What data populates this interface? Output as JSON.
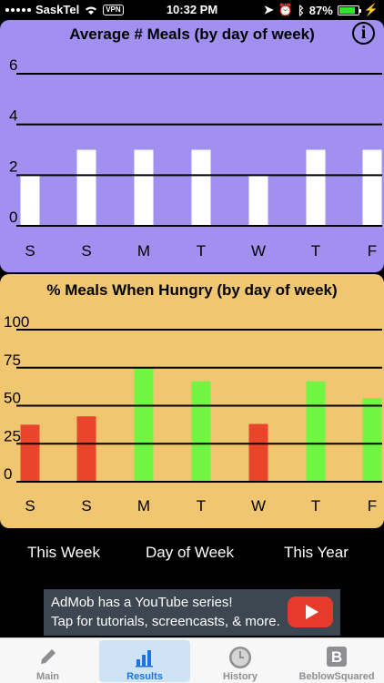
{
  "status_bar": {
    "carrier": "SaskTel",
    "vpn": "VPN",
    "time": "10:32 PM",
    "battery_percent": "87%",
    "battery_level": 0.87
  },
  "chart_data": [
    {
      "type": "bar",
      "title": "Average # Meals (by day of week)",
      "categories": [
        "S",
        "S",
        "M",
        "T",
        "W",
        "T",
        "F"
      ],
      "values": [
        2,
        3,
        3,
        3,
        2,
        3,
        3
      ],
      "yticks": [
        "6",
        "4",
        "2",
        "0"
      ],
      "ylim": [
        0,
        6
      ],
      "bar_color": "#ffffff",
      "background": "#a190f0"
    },
    {
      "type": "bar",
      "title": "% Meals When Hungry (by day of week)",
      "categories": [
        "S",
        "S",
        "M",
        "T",
        "W",
        "T",
        "F"
      ],
      "values": [
        37.5,
        43,
        75,
        66,
        38,
        66,
        55
      ],
      "yticks": [
        "100",
        "75",
        "50",
        "25",
        "0"
      ],
      "ylim": [
        0,
        100
      ],
      "bar_colors": [
        "#e8452c",
        "#e8452c",
        "#6ff542",
        "#6ff542",
        "#e8452c",
        "#6ff542",
        "#6ff542"
      ],
      "background": "#f0c670"
    }
  ],
  "range_tabs": [
    "This Week",
    "Day of Week",
    "This Year"
  ],
  "ad": {
    "line1": "AdMob has a YouTube series!",
    "line2": "Tap for tutorials, screencasts, & more."
  },
  "tab_bar": {
    "items": [
      {
        "label": "Main",
        "icon": "pencil-icon"
      },
      {
        "label": "Results",
        "icon": "bar-chart-icon"
      },
      {
        "label": "History",
        "icon": "clock-icon"
      },
      {
        "label": "BeblowSquared",
        "icon": "b-logo-icon"
      }
    ],
    "active": "Results"
  }
}
